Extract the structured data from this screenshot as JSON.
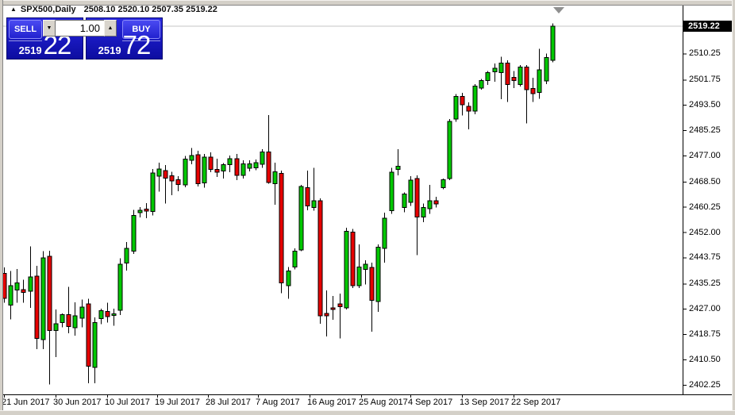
{
  "window": {
    "title_arrow": "▲",
    "symbol": "SPX500,Daily",
    "ohlc_line": "2508.10 2520.10 2507.35 2519.22"
  },
  "trade_panel": {
    "sell_label": "SELL",
    "buy_label": "BUY",
    "volume_value": "1.00",
    "spin_down_icon": "▼",
    "spin_up_icon": "▲",
    "sell_price_base": "2519",
    "sell_price_big": "22",
    "buy_price_base": "2519",
    "buy_price_big": "72"
  },
  "chart_data": {
    "type": "candlestick",
    "title": "SPX500,Daily",
    "symbol": "SPX500",
    "timeframe": "Daily",
    "current_bar": {
      "open": 2508.1,
      "high": 2520.1,
      "low": 2507.35,
      "close": 2519.22
    },
    "current_price": 2519.22,
    "current_price_label": "2519.22",
    "grid": false,
    "legend": "none",
    "ylim": [
      2402.25,
      2522.0
    ],
    "y_ticks": [
      "2510.25",
      "2501.75",
      "2493.50",
      "2485.25",
      "2477.00",
      "2468.50",
      "2460.25",
      "2452.00",
      "2443.75",
      "2435.25",
      "2427.00",
      "2418.75",
      "2410.50",
      "2402.25"
    ],
    "x_ticks": [
      {
        "label": "21 Jun 2017",
        "x": 5
      },
      {
        "label": "30 Jun 2017",
        "x": 70
      },
      {
        "label": "10 Jul 2017",
        "x": 135
      },
      {
        "label": "19 Jul 2017",
        "x": 198
      },
      {
        "label": "28 Jul 2017",
        "x": 262
      },
      {
        "label": "7 Aug 2017",
        "x": 325
      },
      {
        "label": "16 Aug 2017",
        "x": 390
      },
      {
        "label": "25 Aug 2017",
        "x": 455
      },
      {
        "label": "4 Sep 2017",
        "x": 517
      },
      {
        "label": "13 Sep 2017",
        "x": 582
      },
      {
        "label": "22 Sep 2017",
        "x": 647
      }
    ],
    "colors": {
      "up": "#00C800",
      "down": "#E60000",
      "outline": "#000000",
      "wick": "#000000",
      "price_line": "#C4C4C4",
      "axis": "#000000",
      "background": "#FFFFFF",
      "price_flag_bg": "#000000",
      "price_flag_text": "#FFFFFF",
      "panel_blue": "#1818BD"
    },
    "candles": [
      [
        2438.5,
        2440.5,
        2429.0,
        2430.4
      ],
      [
        2428.2,
        2439.3,
        2423.5,
        2434.6
      ],
      [
        2433.1,
        2440.0,
        2429.0,
        2435.5
      ],
      [
        2433.3,
        2436.5,
        2429.0,
        2432.4
      ],
      [
        2432.7,
        2447.3,
        2427.3,
        2437.4
      ],
      [
        2437.6,
        2441.0,
        2413.9,
        2417.3
      ],
      [
        2416.9,
        2445.8,
        2413.9,
        2443.6
      ],
      [
        2444.1,
        2446.0,
        2402.3,
        2419.9
      ],
      [
        2419.9,
        2426.8,
        2411.3,
        2422.1
      ],
      [
        2422.5,
        2425.5,
        2421.0,
        2425.1
      ],
      [
        2425.1,
        2434.2,
        2419.0,
        2421.2
      ],
      [
        2420.8,
        2429.1,
        2418.3,
        2424.7
      ],
      [
        2424.0,
        2430.0,
        2421.0,
        2427.5
      ],
      [
        2428.6,
        2430.3,
        2402.7,
        2408.3
      ],
      [
        2407.9,
        2424.2,
        2402.7,
        2422.5
      ],
      [
        2423.8,
        2427.0,
        2422.0,
        2426.4
      ],
      [
        2426.2,
        2429.0,
        2422.5,
        2424.4
      ],
      [
        2424.8,
        2427.0,
        2421.5,
        2425.3
      ],
      [
        2426.5,
        2443.5,
        2425.0,
        2441.5
      ],
      [
        2441.9,
        2448.8,
        2439.5,
        2446.7
      ],
      [
        2445.8,
        2459.3,
        2444.9,
        2457.5
      ],
      [
        2458.3,
        2460.2,
        2456.8,
        2459.2
      ],
      [
        2459.5,
        2461.5,
        2456.5,
        2458.9
      ],
      [
        2458.8,
        2472.6,
        2457.5,
        2471.3
      ],
      [
        2470.2,
        2474.7,
        2465.2,
        2472.6
      ],
      [
        2472.1,
        2473.9,
        2461.4,
        2469.6
      ],
      [
        2470.4,
        2471.7,
        2464.0,
        2468.7
      ],
      [
        2469.1,
        2470.2,
        2465.3,
        2467.5
      ],
      [
        2467.4,
        2476.9,
        2466.6,
        2475.8
      ],
      [
        2475.5,
        2479.4,
        2474.2,
        2477.0
      ],
      [
        2477.3,
        2478.5,
        2466.9,
        2467.8
      ],
      [
        2468.0,
        2477.5,
        2466.5,
        2476.5
      ],
      [
        2476.5,
        2478.0,
        2471.5,
        2472.5
      ],
      [
        2472.5,
        2476.0,
        2470.0,
        2471.5
      ],
      [
        2472.0,
        2474.5,
        2469.5,
        2474.0
      ],
      [
        2474.0,
        2477.0,
        2471.5,
        2476.0
      ],
      [
        2476.0,
        2477.5,
        2469.0,
        2470.5
      ],
      [
        2470.5,
        2475.5,
        2469.5,
        2474.3
      ],
      [
        2472.8,
        2475.5,
        2471.8,
        2474.3
      ],
      [
        2473.0,
        2475.7,
        2472.2,
        2474.7
      ],
      [
        2474.2,
        2479.0,
        2473.0,
        2478.1
      ],
      [
        2478.1,
        2490.2,
        2467.8,
        2468.2
      ],
      [
        2467.8,
        2474.7,
        2461.0,
        2471.7
      ],
      [
        2471.2,
        2472.1,
        2432.1,
        2435.5
      ],
      [
        2434.6,
        2440.6,
        2430.3,
        2439.3
      ],
      [
        2440.6,
        2446.7,
        2439.8,
        2445.8
      ],
      [
        2446.2,
        2467.4,
        2445.8,
        2466.9
      ],
      [
        2466.5,
        2472.1,
        2459.2,
        2460.5
      ],
      [
        2460.0,
        2473.0,
        2459.0,
        2462.2
      ],
      [
        2462.2,
        2463.0,
        2422.1,
        2424.7
      ],
      [
        2425.5,
        2433.0,
        2418.0,
        2424.7
      ],
      [
        2427.3,
        2431.2,
        2423.4,
        2426.8
      ],
      [
        2428.6,
        2432.0,
        2417.4,
        2427.7
      ],
      [
        2427.3,
        2453.5,
        2426.8,
        2452.3
      ],
      [
        2452.0,
        2453.1,
        2433.8,
        2434.6
      ],
      [
        2434.6,
        2448.0,
        2433.8,
        2440.6
      ],
      [
        2439.8,
        2442.8,
        2435.0,
        2441.5
      ],
      [
        2440.5,
        2442.0,
        2419.5,
        2429.8
      ],
      [
        2429.4,
        2448.0,
        2426.0,
        2447.1
      ],
      [
        2446.7,
        2458.3,
        2442.0,
        2456.6
      ],
      [
        2459.0,
        2473.0,
        2458.0,
        2471.5
      ],
      [
        2472.5,
        2479.0,
        2470.5,
        2473.5
      ],
      [
        2460.0,
        2465.0,
        2458.5,
        2464.4
      ],
      [
        2461.7,
        2470.3,
        2460.5,
        2469.0
      ],
      [
        2469.5,
        2470.5,
        2444.5,
        2457.0
      ],
      [
        2457.0,
        2461.3,
        2455.2,
        2460.0
      ],
      [
        2459.6,
        2467.4,
        2458.0,
        2462.2
      ],
      [
        2462.2,
        2463.5,
        2460.0,
        2461.2
      ],
      [
        2466.5,
        2469.5,
        2466.0,
        2469.1
      ],
      [
        2469.5,
        2488.9,
        2469.0,
        2488.1
      ],
      [
        2488.9,
        2497.0,
        2488.0,
        2496.3
      ],
      [
        2496.3,
        2497.5,
        2490.0,
        2493.5
      ],
      [
        2493.0,
        2494.3,
        2485.5,
        2491.5
      ],
      [
        2491.5,
        2500.3,
        2490.5,
        2499.7
      ],
      [
        2499.0,
        2502.0,
        2498.5,
        2501.5
      ],
      [
        2501.5,
        2504.5,
        2500.0,
        2504.0
      ],
      [
        2504.3,
        2507.0,
        2501.0,
        2505.5
      ],
      [
        2504.1,
        2509.2,
        2495.4,
        2507.1
      ],
      [
        2507.1,
        2508.0,
        2494.5,
        2500.2
      ],
      [
        2502.5,
        2504.5,
        2499.0,
        2501.5
      ],
      [
        2500.2,
        2506.5,
        2499.5,
        2505.8
      ],
      [
        2505.8,
        2506.5,
        2487.5,
        2498.5
      ],
      [
        2498.9,
        2502.3,
        2494.5,
        2497.2
      ],
      [
        2497.6,
        2511.8,
        2495.5,
        2505.0
      ],
      [
        2501.3,
        2510.3,
        2500.3,
        2509.0
      ],
      [
        2508.1,
        2520.1,
        2507.35,
        2519.22
      ]
    ]
  }
}
